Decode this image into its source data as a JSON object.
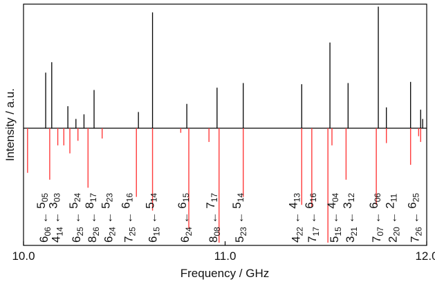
{
  "chart_data": {
    "type": "line",
    "title": "",
    "xlabel": "Frequency / GHz",
    "ylabel": "Intensity / a.u.",
    "xlim": [
      10.0,
      12.0
    ],
    "x_ticks": [
      {
        "value": 10.0,
        "label": "10.0"
      },
      {
        "value": 11.0,
        "label": "11.0"
      },
      {
        "value": 12.0,
        "label": "12.0"
      }
    ],
    "ylim": [
      -1.0,
      1.05
    ],
    "grid": false,
    "legend": "none",
    "colors": {
      "experimental": "#000000",
      "simulated": "#ff3a3a",
      "annotation": "#111111"
    },
    "series": [
      {
        "role": "experimental",
        "sticks": [
          {
            "x": 10.11,
            "y": 0.48
          },
          {
            "x": 10.14,
            "y": 0.57
          },
          {
            "x": 10.22,
            "y": 0.19
          },
          {
            "x": 10.26,
            "y": 0.08
          },
          {
            "x": 10.3,
            "y": 0.12
          },
          {
            "x": 10.35,
            "y": 0.33
          },
          {
            "x": 10.57,
            "y": 0.14
          },
          {
            "x": 10.64,
            "y": 1.0
          },
          {
            "x": 10.81,
            "y": 0.21
          },
          {
            "x": 10.96,
            "y": 0.35
          },
          {
            "x": 11.09,
            "y": 0.39
          },
          {
            "x": 11.38,
            "y": 0.38
          },
          {
            "x": 11.52,
            "y": 0.74
          },
          {
            "x": 11.61,
            "y": 0.39
          },
          {
            "x": 11.76,
            "y": 1.05
          },
          {
            "x": 11.8,
            "y": 0.18
          },
          {
            "x": 11.92,
            "y": 0.4
          },
          {
            "x": 11.97,
            "y": 0.16
          },
          {
            "x": 11.98,
            "y": 0.08
          }
        ]
      },
      {
        "role": "simulated",
        "sticks": [
          {
            "x": 10.02,
            "y": -0.39
          },
          {
            "x": 10.13,
            "y": -0.45
          },
          {
            "x": 10.17,
            "y": -0.15
          },
          {
            "x": 10.2,
            "y": -0.15
          },
          {
            "x": 10.23,
            "y": -0.22
          },
          {
            "x": 10.27,
            "y": -0.11
          },
          {
            "x": 10.32,
            "y": -0.52
          },
          {
            "x": 10.39,
            "y": -0.09
          },
          {
            "x": 10.56,
            "y": -0.6
          },
          {
            "x": 10.64,
            "y": -0.72
          },
          {
            "x": 10.78,
            "y": -0.04
          },
          {
            "x": 10.82,
            "y": -0.88
          },
          {
            "x": 10.92,
            "y": -0.12
          },
          {
            "x": 10.97,
            "y": -1.0
          },
          {
            "x": 11.09,
            "y": -0.6
          },
          {
            "x": 11.38,
            "y": -0.67
          },
          {
            "x": 11.43,
            "y": -0.69
          },
          {
            "x": 11.51,
            "y": -1.0
          },
          {
            "x": 11.53,
            "y": -0.15
          },
          {
            "x": 11.6,
            "y": -0.45
          },
          {
            "x": 11.75,
            "y": -0.67
          },
          {
            "x": 11.8,
            "y": -0.13
          },
          {
            "x": 11.92,
            "y": -0.32
          },
          {
            "x": 11.96,
            "y": -0.07
          },
          {
            "x": 11.97,
            "y": -0.12
          }
        ]
      }
    ],
    "annotations": [
      {
        "upper": "6",
        "sub1": "06",
        "arrow": "←",
        "lower": "5",
        "sub2": "05",
        "x": 10.1
      },
      {
        "upper": "4",
        "sub1": "14",
        "arrow": "←",
        "lower": "3",
        "sub2": "03",
        "x": 10.16
      },
      {
        "upper": "6",
        "sub1": "25",
        "arrow": "←",
        "lower": "5",
        "sub2": "24",
        "x": 10.26
      },
      {
        "upper": "8",
        "sub1": "26",
        "arrow": "←",
        "lower": "8",
        "sub2": "17",
        "x": 10.34
      },
      {
        "upper": "6",
        "sub1": "24",
        "arrow": "←",
        "lower": "5",
        "sub2": "23",
        "x": 10.42
      },
      {
        "upper": "7",
        "sub1": "25",
        "arrow": "←",
        "lower": "6",
        "sub2": "16",
        "x": 10.52
      },
      {
        "upper": "6",
        "sub1": "15",
        "arrow": "←",
        "lower": "5",
        "sub2": "14",
        "x": 10.64
      },
      {
        "upper": "6",
        "sub1": "24",
        "arrow": "←",
        "lower": "6",
        "sub2": "15",
        "x": 10.8
      },
      {
        "upper": "8",
        "sub1": "08",
        "arrow": "←",
        "lower": "7",
        "sub2": "17",
        "x": 10.94
      },
      {
        "upper": "5",
        "sub1": "23",
        "arrow": "←",
        "lower": "5",
        "sub2": "14",
        "x": 11.07
      },
      {
        "upper": "4",
        "sub1": "22",
        "arrow": "←",
        "lower": "4",
        "sub2": "13",
        "x": 11.35
      },
      {
        "upper": "7",
        "sub1": "17",
        "arrow": "←",
        "lower": "6",
        "sub2": "16",
        "x": 11.43
      },
      {
        "upper": "5",
        "sub1": "15",
        "arrow": "←",
        "lower": "4",
        "sub2": "04",
        "x": 11.54
      },
      {
        "upper": "3",
        "sub1": "21",
        "arrow": "←",
        "lower": "3",
        "sub2": "12",
        "x": 11.62
      },
      {
        "upper": "7",
        "sub1": "07",
        "arrow": "←",
        "lower": "6",
        "sub2": "06",
        "x": 11.75
      },
      {
        "upper": "2",
        "sub1": "20",
        "arrow": "←",
        "lower": "2",
        "sub2": "11",
        "x": 11.83
      },
      {
        "upper": "7",
        "sub1": "26",
        "arrow": "←",
        "lower": "6",
        "sub2": "25",
        "x": 11.94
      }
    ]
  }
}
